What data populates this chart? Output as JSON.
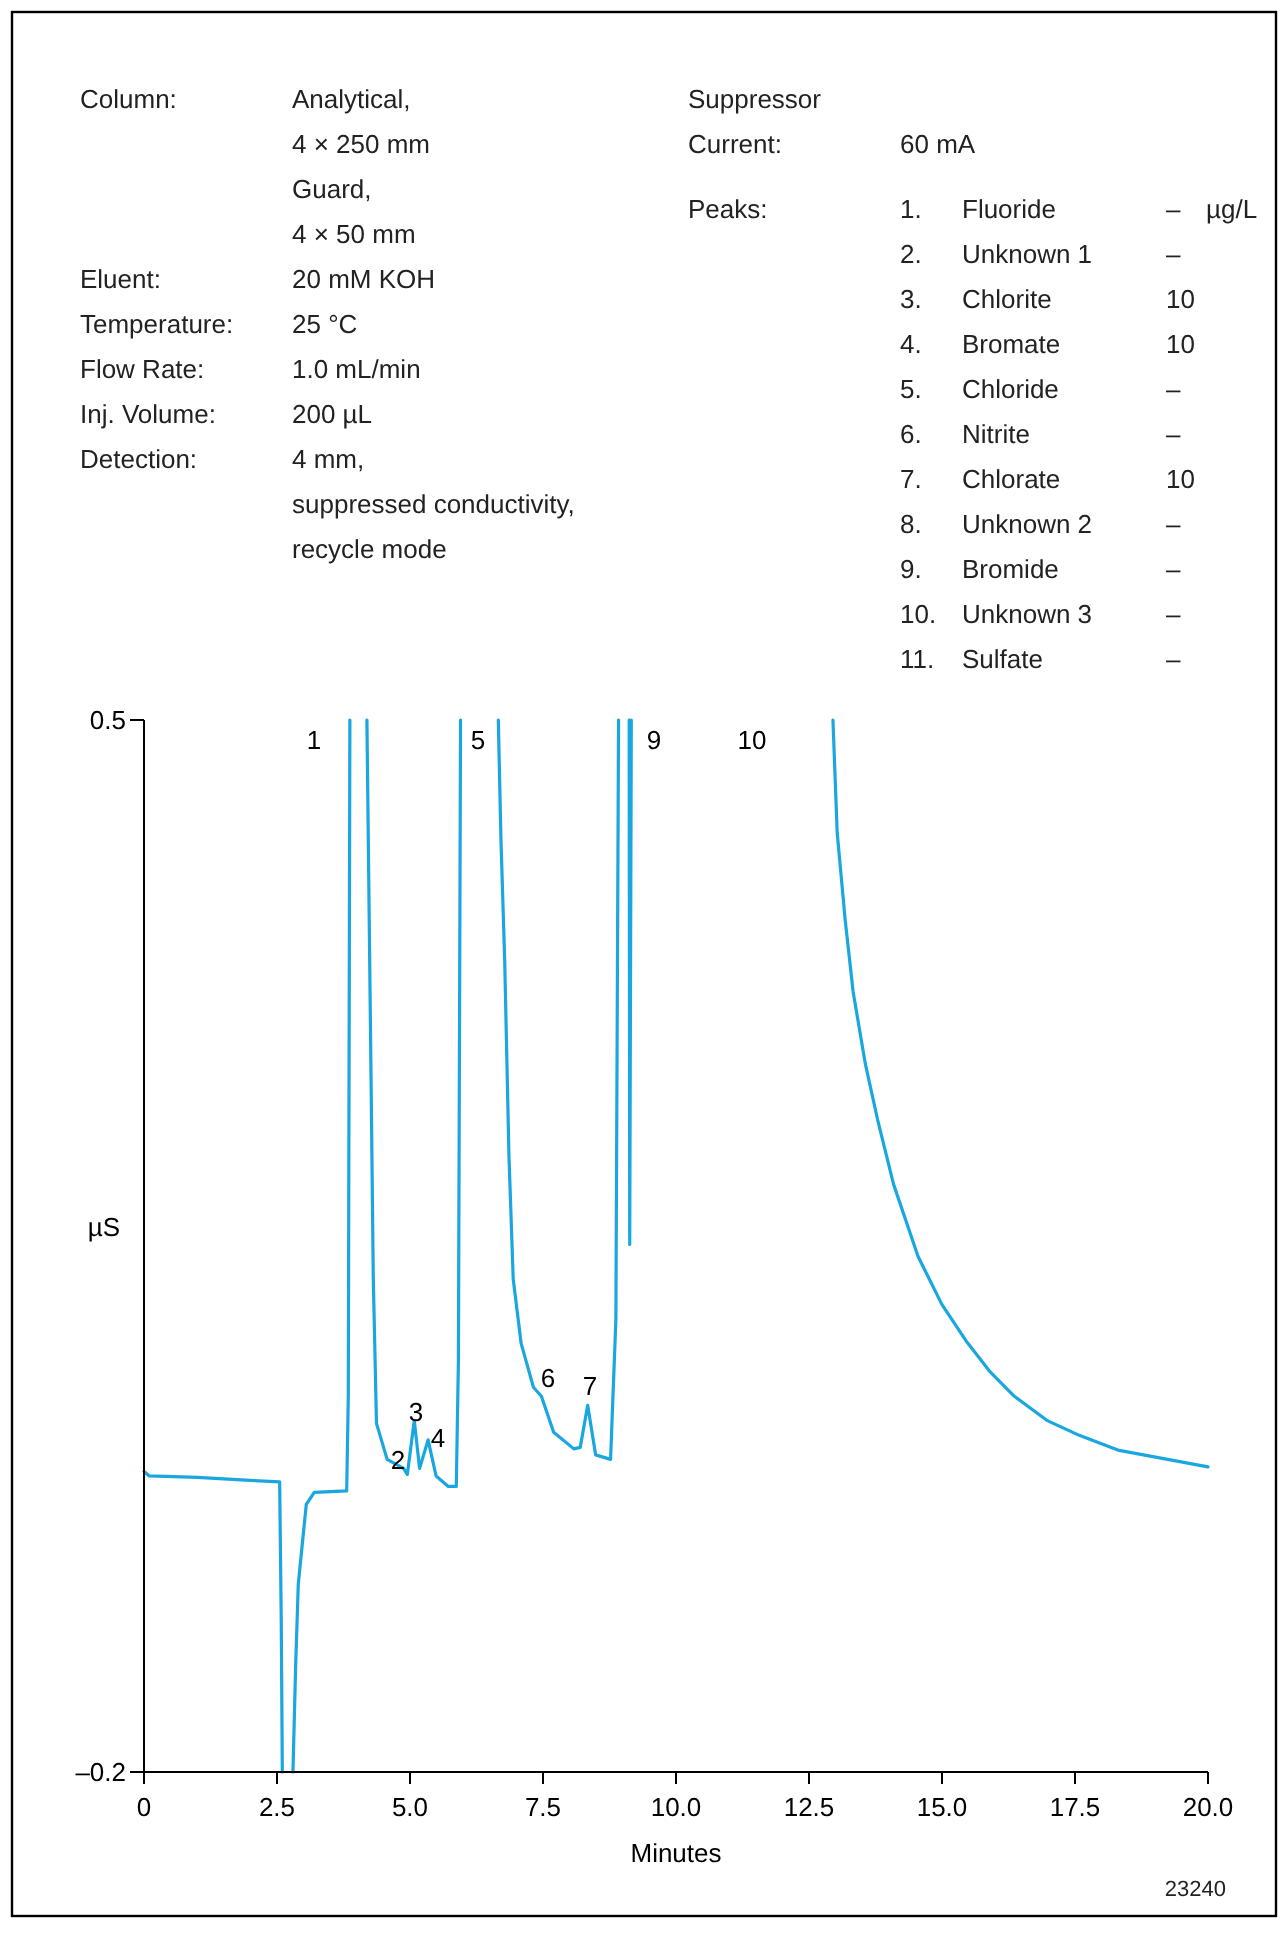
{
  "chart_data": {
    "type": "line",
    "xlabel": "Minutes",
    "ylabel": "µS",
    "xlim": [
      0,
      20
    ],
    "ylim": [
      -0.2,
      0.5
    ],
    "xticks": [
      0,
      {
        "value": 2.5,
        "label": "2.5"
      },
      {
        "value": 5,
        "label": "5.0"
      },
      {
        "value": 7.5,
        "label": "7.5"
      },
      {
        "value": 10,
        "label": "10.0"
      },
      {
        "value": 12.5,
        "label": "12.5"
      },
      {
        "value": 15,
        "label": "15.0"
      },
      {
        "value": 17.5,
        "label": "17.5"
      },
      {
        "value": 20,
        "label": "20.0"
      }
    ],
    "yticks": [
      {
        "value": -0.2,
        "label": "–0.2"
      },
      0.5
    ],
    "x": [
      0,
      0.1,
      1,
      2,
      2.55,
      2.58,
      2.6,
      2.7,
      2.8,
      2.85,
      2.9,
      3.05,
      3.2,
      3.81,
      3.84,
      3.87,
      4.0,
      4.19,
      4.27,
      4.31,
      4.37,
      4.57,
      4.88,
      4.95,
      5.08,
      5.18,
      5.34,
      5.49,
      5.72,
      5.87,
      5.91,
      5.95,
      6.3,
      6.66,
      6.71,
      6.78,
      6.86,
      6.94,
      7.09,
      7.32,
      7.47,
      7.7,
      8.08,
      8.2,
      8.34,
      8.49,
      8.77,
      8.87,
      8.92,
      9.0,
      9.12,
      9.13,
      9.16,
      11,
      12.95,
      13.03,
      13.18,
      13.33,
      13.56,
      13.79,
      14.09,
      14.55,
      15.0,
      15.45,
      15.91,
      16.36,
      16.97,
      17.58,
      18.33,
      19.09,
      20
    ],
    "series": [
      {
        "color": "#1aa7e0",
        "values": [
          0.0,
          -0.003,
          -0.004,
          -0.006,
          -0.007,
          -0.1,
          -0.2,
          null,
          -0.2,
          -0.13,
          -0.075,
          -0.022,
          -0.014,
          -0.013,
          0.05,
          0.5,
          null,
          0.5,
          0.255,
          0.128,
          0.032,
          0.008,
          0.002,
          -0.002,
          0.034,
          0.002,
          0.021,
          -0.003,
          -0.01,
          -0.01,
          0.074,
          0.5,
          null,
          0.5,
          0.42,
          0.34,
          0.21,
          0.128,
          0.085,
          0.056,
          0.05,
          0.026,
          0.015,
          0.016,
          0.044,
          0.011,
          0.008,
          0.101,
          0.5,
          null,
          0.5,
          0.151,
          0.5,
          null,
          0.5,
          0.425,
          0.367,
          0.319,
          0.271,
          0.234,
          0.191,
          0.143,
          0.111,
          0.087,
          0.066,
          0.05,
          0.034,
          0.024,
          0.014,
          0.009,
          0.003
        ]
      }
    ],
    "annotations": [
      "Column:",
      "Analytical,",
      "4 × 250 mm",
      "Guard,",
      "4 × 50 mm",
      "Eluent:",
      "20 mM KOH",
      "Temperature:",
      "25 °C",
      "Flow Rate:",
      "1.0 mL/min",
      "Inj. Volume:",
      "200 µL",
      "Detection:",
      "4 mm,",
      "suppressed conductivity,",
      "recycle mode",
      "Suppressor",
      "Current:",
      "60 mA",
      "Peaks:",
      "1.",
      "Fluoride",
      "–",
      "2.",
      "Unknown 1",
      "–",
      "3.",
      "Chlorite",
      "10",
      "4.",
      "Bromate",
      "10",
      "5.",
      "Chloride",
      "–",
      "6.",
      "Nitrite",
      "–",
      "7.",
      "Chlorate",
      "10",
      "8.",
      "Unknown 2",
      "–",
      "9.",
      "Bromide",
      "–",
      "10.",
      "Unknown 3",
      "–",
      "11.",
      "Sulfate",
      "–",
      "µg/L",
      "23240",
      "1",
      "2",
      "3",
      "4",
      "5",
      "6",
      "7",
      "9",
      "10"
    ]
  }
}
